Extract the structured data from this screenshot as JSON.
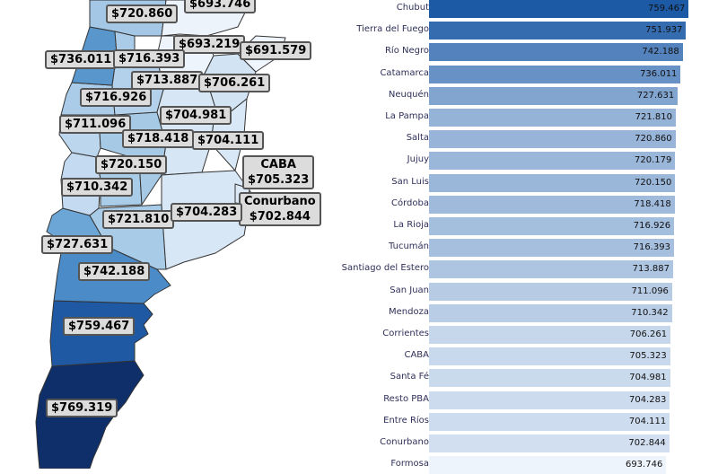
{
  "chart_data": [
    {
      "type": "bar",
      "orientation": "horizontal",
      "categories": [
        "Chubut",
        "Tierra del Fuego",
        "Río Negro",
        "Catamarca",
        "Neuquén",
        "La Pampa",
        "Salta",
        "Jujuy",
        "San Luis",
        "Córdoba",
        "La Rioja",
        "Tucumán",
        "Santiago del Estero",
        "San Juan",
        "Mendoza",
        "Corrientes",
        "CABA",
        "Santa Fé",
        "Resto PBA",
        "Entre Ríos",
        "Conurbano",
        "Formosa"
      ],
      "values": [
        759.467,
        751.937,
        742.188,
        736.011,
        727.631,
        721.81,
        720.86,
        720.179,
        720.15,
        718.418,
        716.926,
        716.393,
        713.887,
        711.096,
        710.342,
        706.261,
        705.323,
        704.981,
        704.283,
        704.111,
        702.844,
        693.746
      ],
      "value_labels": [
        "759.467",
        "751.937",
        "742.188",
        "736.011",
        "727.631",
        "721.810",
        "720.860",
        "720.179",
        "720.150",
        "718.418",
        "716.926",
        "716.393",
        "713.887",
        "711.096",
        "710.342",
        "706.261",
        "705.323",
        "704.981",
        "704.283",
        "704.111",
        "702.844",
        "693.746"
      ],
      "xlim": [
        0,
        790
      ],
      "color_scale": [
        "#eef4fc",
        "#1d5aa6"
      ]
    },
    {
      "type": "choropleth",
      "region": "Argentina",
      "labels": [
        {
          "region": "Formosa",
          "text": "$693.746",
          "value": 693.746
        },
        {
          "region": "Salta",
          "text": "$720.860",
          "value": 720.86
        },
        {
          "region": "Chaco",
          "text": "$693.219",
          "value": 693.219
        },
        {
          "region": "Misiones",
          "text": "$691.579",
          "value": 691.579
        },
        {
          "region": "Catamarca",
          "text": "$736.011",
          "value": 736.011
        },
        {
          "region": "Tucumán",
          "text": "$716.393",
          "value": 716.393
        },
        {
          "region": "Santiago del Estero",
          "text": "$713.887",
          "value": 713.887
        },
        {
          "region": "Corrientes",
          "text": "$706.261",
          "value": 706.261
        },
        {
          "region": "La Rioja",
          "text": "$716.926",
          "value": 716.926
        },
        {
          "region": "Santa Fé",
          "text": "$704.981",
          "value": 704.981
        },
        {
          "region": "San Juan",
          "text": "$711.096",
          "value": 711.096
        },
        {
          "region": "Córdoba",
          "text": "$718.418",
          "value": 718.418
        },
        {
          "region": "Entre Ríos",
          "text": "$704.111",
          "value": 704.111
        },
        {
          "region": "San Luis",
          "text": "$720.150",
          "value": 720.15
        },
        {
          "region": "CABA",
          "title": "CABA",
          "text": "$705.323",
          "value": 705.323
        },
        {
          "region": "Mendoza",
          "text": "$710.342",
          "value": 710.342
        },
        {
          "region": "Conurbano",
          "title": "Conurbano",
          "text": "$702.844",
          "value": 702.844
        },
        {
          "region": "La Pampa",
          "text": "$721.810",
          "value": 721.81
        },
        {
          "region": "Resto PBA",
          "text": "$704.283",
          "value": 704.283
        },
        {
          "region": "Neuquén",
          "text": "$727.631",
          "value": 727.631
        },
        {
          "region": "Río Negro",
          "text": "$742.188",
          "value": 742.188
        },
        {
          "region": "Chubut",
          "text": "$759.467",
          "value": 759.467
        },
        {
          "region": "Santa Cruz",
          "text": "$769.319",
          "value": 769.319
        }
      ]
    }
  ]
}
